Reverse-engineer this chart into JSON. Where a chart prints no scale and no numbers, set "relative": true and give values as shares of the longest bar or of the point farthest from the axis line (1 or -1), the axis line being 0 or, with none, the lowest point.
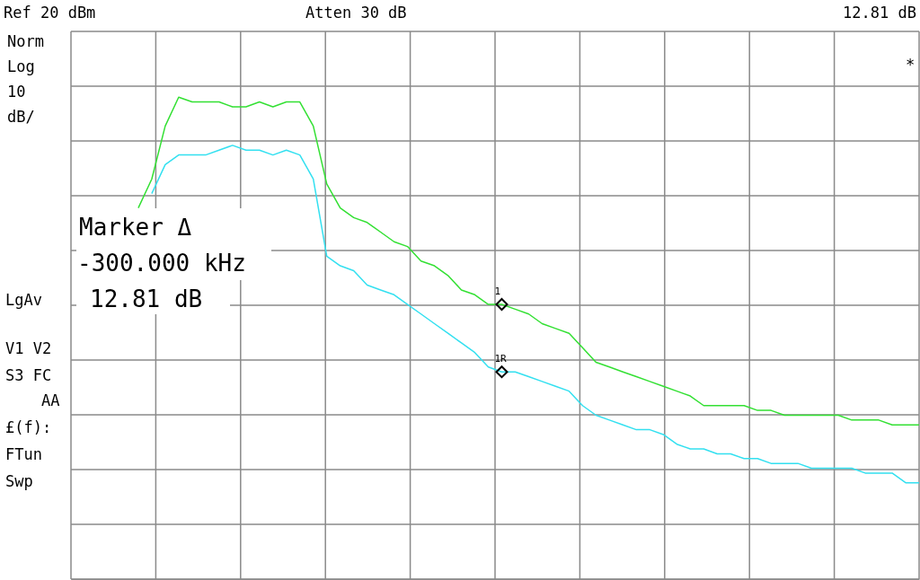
{
  "chart_data": {
    "type": "line",
    "relative": true,
    "categories": [
      null,
      null,
      null,
      null,
      null,
      null,
      null,
      null,
      null,
      null,
      null,
      null,
      null,
      null,
      null,
      null,
      null,
      null,
      null,
      null,
      null,
      null,
      null,
      null,
      null,
      null,
      null,
      null,
      null,
      null,
      null,
      null,
      null,
      null,
      null,
      null,
      null,
      null,
      null,
      null,
      null,
      null,
      null,
      null,
      null,
      null,
      null,
      null,
      null,
      null,
      null,
      null,
      null,
      null,
      null,
      null,
      null,
      null,
      null,
      null,
      null,
      null,
      null,
      null
    ],
    "series": [
      {
        "color": "#33e033",
        "values": [
          null,
          null,
          null,
          null,
          null,
          0.77,
          0.83,
          0.94,
          1,
          0.99,
          0.99,
          0.99,
          0.98,
          0.98,
          0.99,
          0.98,
          0.99,
          0.99,
          0.94,
          0.82,
          0.77,
          0.75,
          0.74,
          0.72,
          0.7,
          0.69,
          0.66,
          0.65,
          0.63,
          0.6,
          0.59,
          0.57,
          0.57,
          0.56,
          0.55,
          0.53,
          0.52,
          0.51,
          0.48,
          0.45,
          0.44,
          0.43,
          0.42,
          0.41,
          0.4,
          0.39,
          0.38,
          0.36,
          0.36,
          0.36,
          0.36,
          0.35,
          0.35,
          0.34,
          0.34,
          0.34,
          0.34,
          0.34,
          0.33,
          0.33,
          0.33,
          0.32,
          0.32,
          0.32
        ]
      },
      {
        "color": "#33e0f0",
        "values": [
          null,
          null,
          null,
          null,
          null,
          null,
          0.8,
          0.86,
          0.88,
          0.88,
          0.88,
          0.89,
          0.9,
          0.89,
          0.89,
          0.88,
          0.89,
          0.88,
          0.83,
          0.67,
          0.65,
          0.64,
          0.61,
          0.6,
          0.59,
          0.57,
          0.55,
          0.53,
          0.51,
          0.49,
          0.47,
          0.44,
          0.43,
          0.43,
          0.42,
          0.41,
          0.4,
          0.39,
          0.36,
          0.34,
          0.33,
          0.32,
          0.31,
          0.31,
          0.3,
          0.28,
          0.27,
          0.27,
          0.26,
          0.26,
          0.25,
          0.25,
          0.24,
          0.24,
          0.24,
          0.23,
          0.23,
          0.23,
          0.23,
          0.22,
          0.22,
          0.22,
          0.2,
          0.2
        ]
      }
    ],
    "grid": true,
    "annotations": [
      "Ref 20 dBm",
      "Atten 30 dB",
      "12.81 dB",
      "Norm",
      "Log",
      "10",
      "dB/",
      "*",
      "Marker Δ",
      "-300.000 kHz",
      "12.81 dB",
      "LgAv",
      "V1 V2",
      "S3 FC",
      "AA",
      "£(f):",
      "FTun",
      "Swp",
      {
        "text": "1",
        "y": 0.57
      },
      {
        "text": "1R",
        "y": 0.43
      }
    ]
  }
}
